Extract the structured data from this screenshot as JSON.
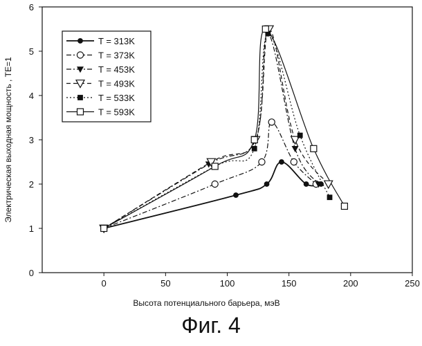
{
  "chart_data": {
    "type": "line",
    "xlabel": "Высота потенциального барьера, мэВ",
    "ylabel": "Электрическая выходная мощность , TE=1",
    "xlim": [
      -50,
      250
    ],
    "ylim": [
      0,
      6
    ],
    "xticks": [
      0,
      50,
      100,
      150,
      200,
      250
    ],
    "yticks": [
      0,
      1,
      2,
      3,
      4,
      5,
      6
    ],
    "grid": false,
    "legend_position": "top-left",
    "series": [
      {
        "name": "T = 313K",
        "marker": "filled-circle",
        "dash": "solid",
        "points": [
          [
            0,
            1
          ],
          [
            107,
            1.75
          ],
          [
            132,
            2.0
          ],
          [
            144,
            2.5
          ],
          [
            164,
            2.0
          ],
          [
            176,
            2.0
          ]
        ]
      },
      {
        "name": "T = 373K",
        "marker": "open-circle",
        "dash": "dashdot",
        "points": [
          [
            0,
            1
          ],
          [
            90,
            2.0
          ],
          [
            128,
            2.5
          ],
          [
            136,
            3.4
          ],
          [
            154,
            2.5
          ],
          [
            172,
            2.0
          ]
        ]
      },
      {
        "name": "T = 453K",
        "marker": "filled-triangle-down",
        "dash": "dashdot",
        "points": [
          [
            0,
            1
          ],
          [
            85,
            2.45
          ],
          [
            123,
            3.0
          ],
          [
            133,
            5.4
          ],
          [
            155,
            2.8
          ],
          [
            174,
            2.0
          ]
        ]
      },
      {
        "name": "T = 493K",
        "marker": "open-triangle-down",
        "dash": "dashed",
        "points": [
          [
            0,
            1
          ],
          [
            87,
            2.5
          ],
          [
            123,
            3.0
          ],
          [
            134,
            5.5
          ],
          [
            155,
            3.0
          ],
          [
            182,
            2.0
          ]
        ]
      },
      {
        "name": "T = 533K",
        "marker": "filled-square",
        "dash": "dotted",
        "points": [
          [
            0,
            1
          ],
          [
            90,
            2.4
          ],
          [
            122,
            2.8
          ],
          [
            133,
            5.4
          ],
          [
            159,
            3.1
          ],
          [
            183,
            1.7
          ]
        ]
      },
      {
        "name": "T = 593K",
        "marker": "open-square",
        "dash": "solid",
        "points": [
          [
            0,
            1
          ],
          [
            90,
            2.4
          ],
          [
            122,
            3.0
          ],
          [
            131,
            5.5
          ],
          [
            170,
            2.8
          ],
          [
            195,
            1.5
          ]
        ]
      }
    ]
  },
  "caption": "Фиг. 4"
}
